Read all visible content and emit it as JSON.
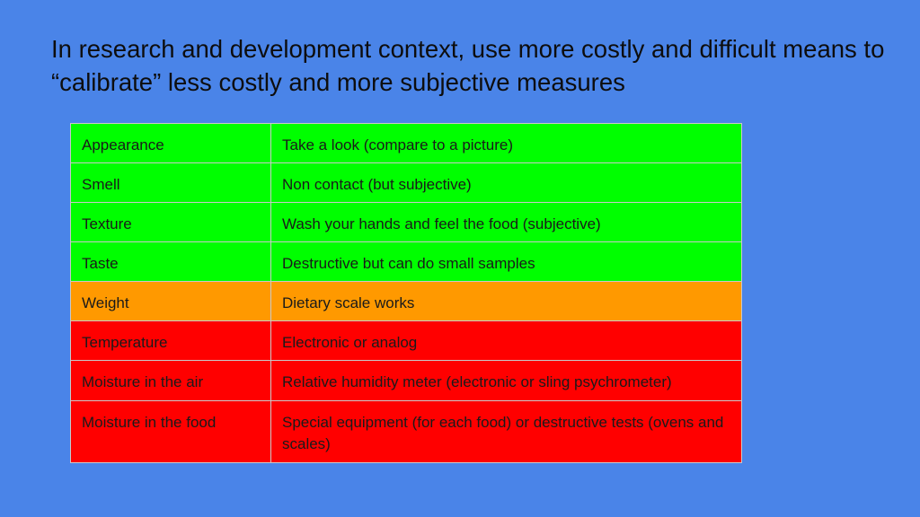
{
  "slide": {
    "title": "In research and development context, use more costly and difficult means to “calibrate” less costly and more subjective measures",
    "background_color": "#4a84e8"
  },
  "table": {
    "rows": [
      {
        "measure": "Appearance",
        "method": "Take a look (compare to a picture)",
        "status": "green"
      },
      {
        "measure": "Smell",
        "method": "Non contact (but subjective)",
        "status": "green"
      },
      {
        "measure": "Texture",
        "method": "Wash your hands and feel the food (subjective)",
        "status": "green"
      },
      {
        "measure": "Taste",
        "method": "Destructive but can do small samples",
        "status": "green"
      },
      {
        "measure": "Weight",
        "method": "Dietary scale works",
        "status": "orange"
      },
      {
        "measure": "Temperature",
        "method": "Electronic or analog",
        "status": "red"
      },
      {
        "measure": "Moisture in the air",
        "method": "Relative humidity meter (electronic or sling psychrometer)",
        "status": "red"
      },
      {
        "measure": "Moisture in the food",
        "method": "Special equipment (for each food) or destructive tests (ovens and scales)",
        "status": "red"
      }
    ],
    "colors": {
      "green": "#00ff00",
      "orange": "#ff9900",
      "red": "#ff0000"
    }
  }
}
